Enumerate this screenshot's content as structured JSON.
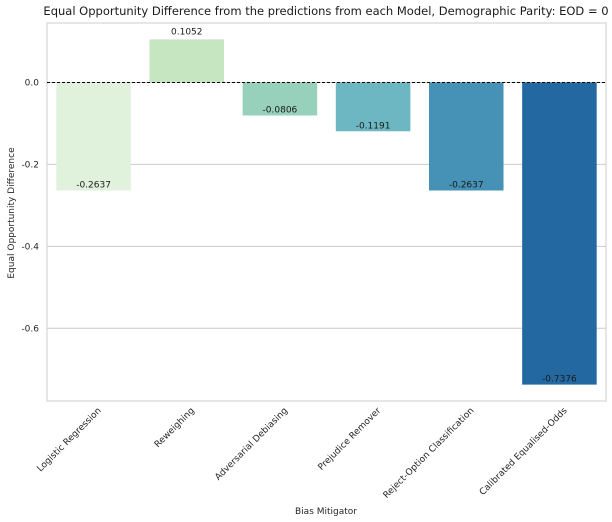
{
  "chart_data": {
    "type": "bar",
    "title": "Equal Opportunity Difference from the predictions from each Model, Demographic Parity: EOD = 0",
    "xlabel": "Bias Mitigator",
    "ylabel": "Equal Opportunity Difference",
    "categories": [
      "Logistic Regression",
      "Reweighing",
      "Adversarial Debiasing",
      "Prejudice Remover",
      "Reject-Option Classification",
      "Calibrated Equalised-Odds"
    ],
    "values": [
      -0.2637,
      0.1052,
      -0.0806,
      -0.1191,
      -0.2637,
      -0.7376
    ],
    "value_labels": [
      "-0.2637",
      "0.1052",
      "-0.0806",
      "-0.1191",
      "-0.2637",
      "-0.7376"
    ],
    "colors": [
      "#e0f2dc",
      "#c5e6c1",
      "#97d1bc",
      "#6cb7c2",
      "#4592b6",
      "#2368a0"
    ],
    "yticks": [
      0.0,
      -0.2,
      -0.4,
      -0.6
    ],
    "ytick_labels": [
      "0.0",
      "-0.2",
      "-0.4",
      "-0.6"
    ],
    "ylim": [
      -0.7776,
      0.1452
    ],
    "reference_line": 0,
    "grid": "horizontal",
    "style": "seaborn-whitegrid"
  }
}
